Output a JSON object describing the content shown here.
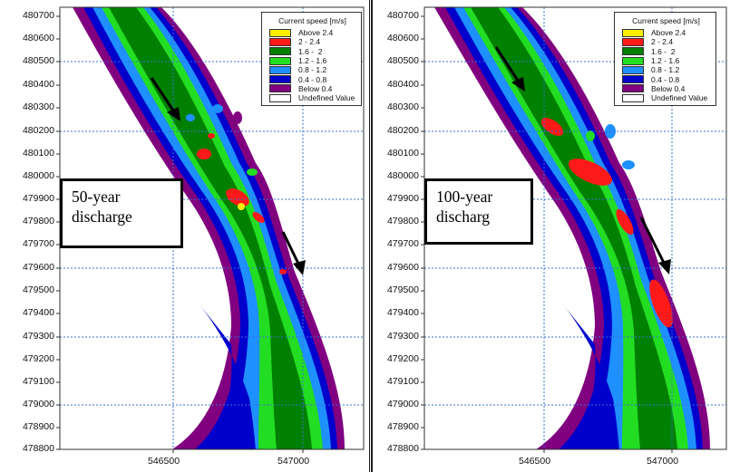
{
  "panels": [
    {
      "caption_line1": "50-year",
      "caption_line2": "discharge"
    },
    {
      "caption_line1": "100-year",
      "caption_line2": "discharg"
    }
  ],
  "y_axis_labels": [
    "480700",
    "480600",
    "480500",
    "480400",
    "480300",
    "480200",
    "480100",
    "480000",
    "479900",
    "479800",
    "479700",
    "479600",
    "479500",
    "479400",
    "479300",
    "479200",
    "479100",
    "479000",
    "478900",
    "478800"
  ],
  "x_axis_labels": [
    "546500",
    "547000"
  ],
  "legend": {
    "title": "Current speed [m/s]",
    "items": [
      {
        "label": "Above 2.4",
        "color": "#ffee00"
      },
      {
        "label": "2 - 2.4",
        "color": "#ff1a1a"
      },
      {
        "label": "1.6 -  2",
        "color": "#008000"
      },
      {
        "label": "1.2 - 1.6",
        "color": "#22dd22"
      },
      {
        "label": "0.8 - 1.2",
        "color": "#1e90ff"
      },
      {
        "label": "0.4 - 0.8",
        "color": "#0000cc"
      },
      {
        "label": "Below 0.4",
        "color": "#800080"
      },
      {
        "label": "Undefined Value",
        "color": "#ffffff"
      }
    ]
  }
}
